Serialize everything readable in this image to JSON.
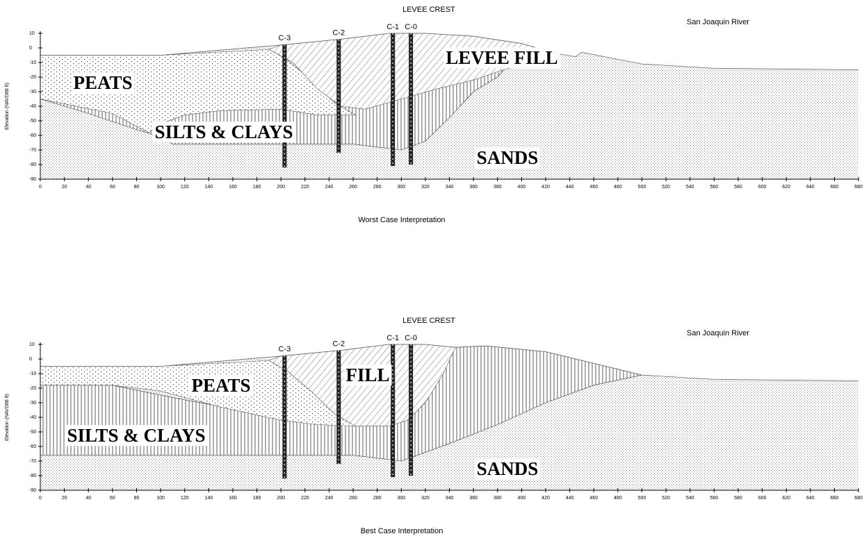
{
  "panels": [
    {
      "top_label": "LEVEE CREST",
      "river_label": "San Joaquin River",
      "caption": "Worst Case Interpretation",
      "y_axis_label": "Elevation (NAVD88 ft)",
      "xticks": [
        0,
        20,
        40,
        60,
        80,
        100,
        120,
        140,
        160,
        180,
        200,
        220,
        240,
        260,
        280,
        300,
        320,
        340,
        360,
        380,
        400,
        420,
        440,
        460,
        480,
        500,
        520,
        540,
        560,
        580,
        600,
        620,
        640,
        660,
        680
      ],
      "yticks": [
        10,
        0,
        -10,
        -20,
        -30,
        -40,
        -50,
        -60,
        -70,
        -80,
        -90
      ],
      "borings": [
        {
          "label": "C-3",
          "x": 203,
          "bottom": -82
        },
        {
          "label": "C-2",
          "x": 248,
          "bottom": -72
        },
        {
          "label": "C-1",
          "x": 293,
          "bottom": -81
        },
        {
          "label": "C-0",
          "x": 308,
          "bottom": -80
        }
      ],
      "layers": [
        "PEATS",
        "SILTS & CLAYS",
        "LEVEE FILL",
        "SANDS"
      ]
    },
    {
      "top_label": "LEVEE CREST",
      "river_label": "San Joaquin River",
      "caption": "Best Case Interpretation",
      "y_axis_label": "Elevation (NAVD88 ft)",
      "xticks": [
        0,
        20,
        40,
        60,
        80,
        100,
        120,
        140,
        160,
        180,
        200,
        220,
        240,
        260,
        280,
        300,
        320,
        340,
        360,
        380,
        400,
        420,
        440,
        460,
        480,
        500,
        520,
        540,
        560,
        580,
        600,
        620,
        640,
        660,
        680
      ],
      "yticks": [
        10,
        0,
        -10,
        -20,
        -30,
        -40,
        -50,
        -60,
        -70,
        -80,
        -90
      ],
      "borings": [
        {
          "label": "C-3",
          "x": 203,
          "bottom": -82
        },
        {
          "label": "C-2",
          "x": 248,
          "bottom": -72
        },
        {
          "label": "C-1",
          "x": 293,
          "bottom": -81
        },
        {
          "label": "C-0",
          "x": 308,
          "bottom": -80
        }
      ],
      "layers": [
        "PEATS",
        "SILTS & CLAYS",
        "FILL",
        "SANDS"
      ]
    }
  ]
}
